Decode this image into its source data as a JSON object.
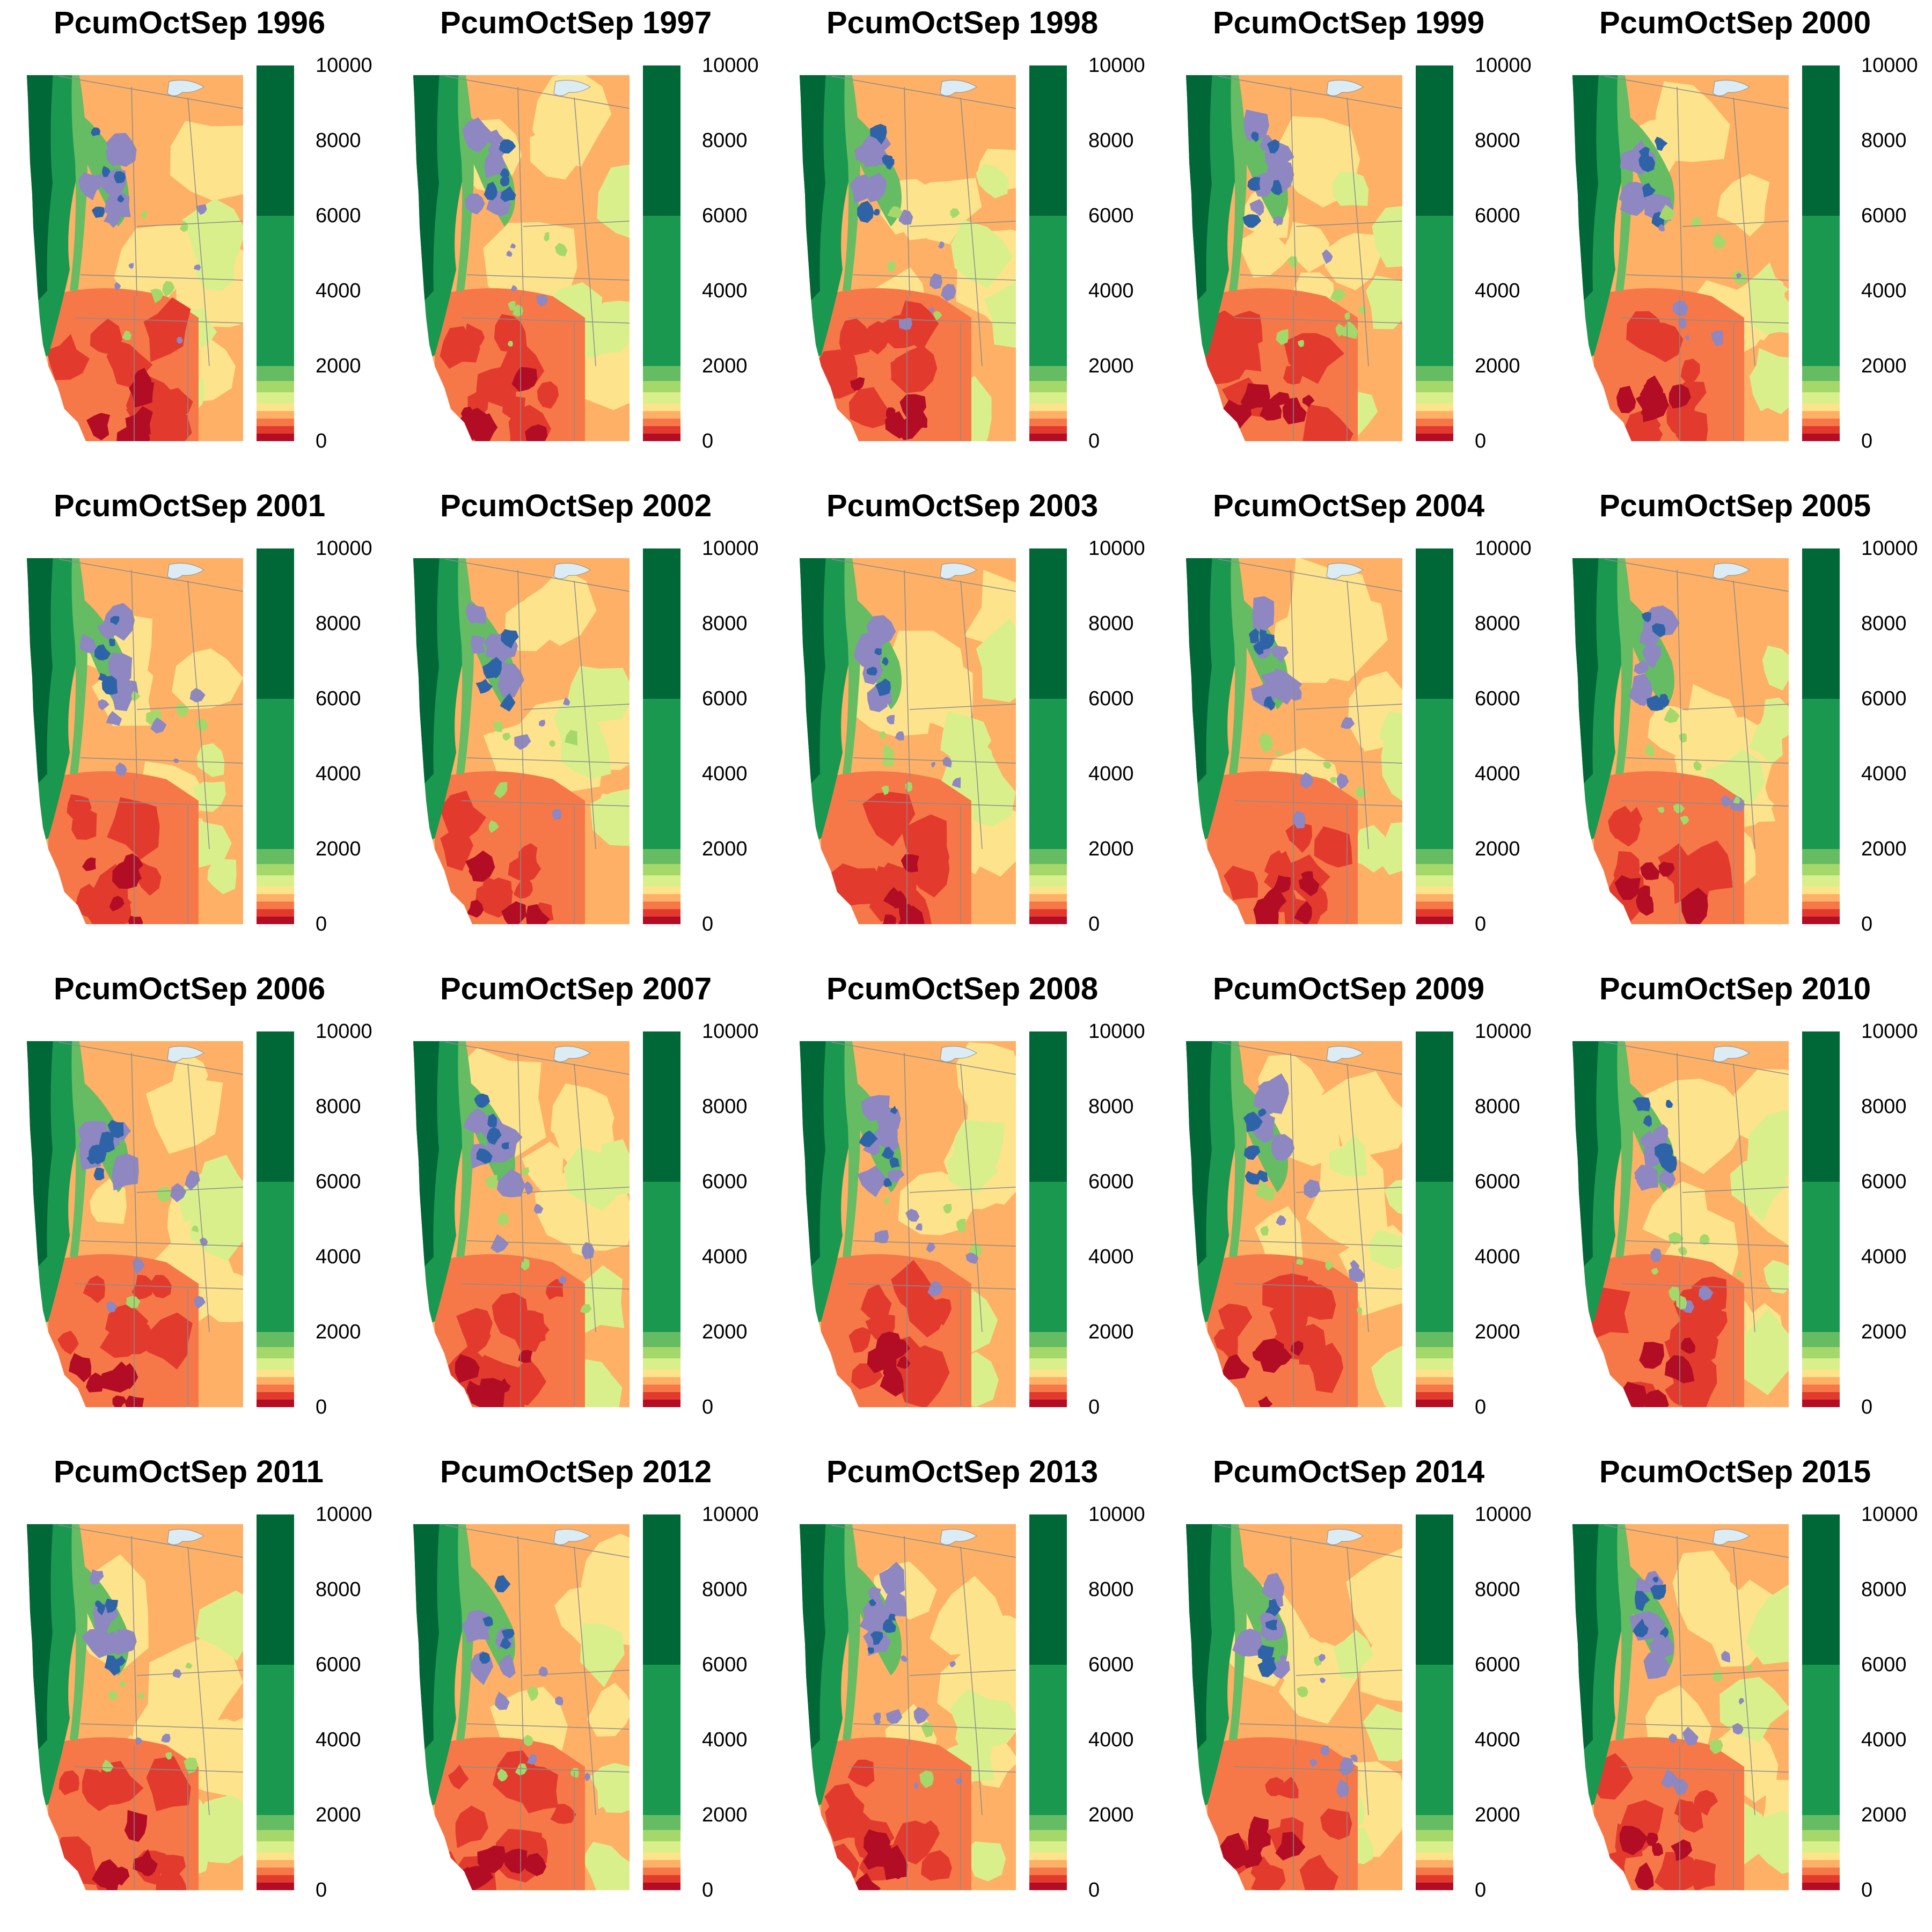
{
  "colors": {
    "scale": [
      "#b30d26",
      "#e23b2e",
      "#f67848",
      "#fdb066",
      "#fde38c",
      "#d9ef8c",
      "#a5d86a",
      "#65bc63",
      "#1a9850",
      "#006837"
    ],
    "snow_light": "#8e87c2",
    "snow_dark": "#2f63a8",
    "water": "#dcecf4",
    "borders": "#8c8c8c"
  },
  "colorbar": {
    "breaks": [
      0,
      200,
      400,
      600,
      800,
      1000,
      1300,
      1600,
      2000,
      6000,
      10000
    ],
    "tick_labels": [
      "0",
      "2000",
      "4000",
      "6000",
      "8000",
      "10000"
    ]
  },
  "panels": [
    {
      "title": "PcumOctSep 1996",
      "year": 1996
    },
    {
      "title": "PcumOctSep 1997",
      "year": 1997
    },
    {
      "title": "PcumOctSep 1998",
      "year": 1998
    },
    {
      "title": "PcumOctSep 1999",
      "year": 1999
    },
    {
      "title": "PcumOctSep 2000",
      "year": 2000
    },
    {
      "title": "PcumOctSep 2001",
      "year": 2001
    },
    {
      "title": "PcumOctSep 2002",
      "year": 2002
    },
    {
      "title": "PcumOctSep 2003",
      "year": 2003
    },
    {
      "title": "PcumOctSep 2004",
      "year": 2004
    },
    {
      "title": "PcumOctSep 2005",
      "year": 2005
    },
    {
      "title": "PcumOctSep 2006",
      "year": 2006
    },
    {
      "title": "PcumOctSep 2007",
      "year": 2007
    },
    {
      "title": "PcumOctSep 2008",
      "year": 2008
    },
    {
      "title": "PcumOctSep 2009",
      "year": 2009
    },
    {
      "title": "PcumOctSep 2010",
      "year": 2010
    },
    {
      "title": "PcumOctSep 2011",
      "year": 2011
    },
    {
      "title": "PcumOctSep 2012",
      "year": 2012
    },
    {
      "title": "PcumOctSep 2013",
      "year": 2013
    },
    {
      "title": "PcumOctSep 2014",
      "year": 2014
    },
    {
      "title": "PcumOctSep 2015",
      "year": 2015
    }
  ]
}
